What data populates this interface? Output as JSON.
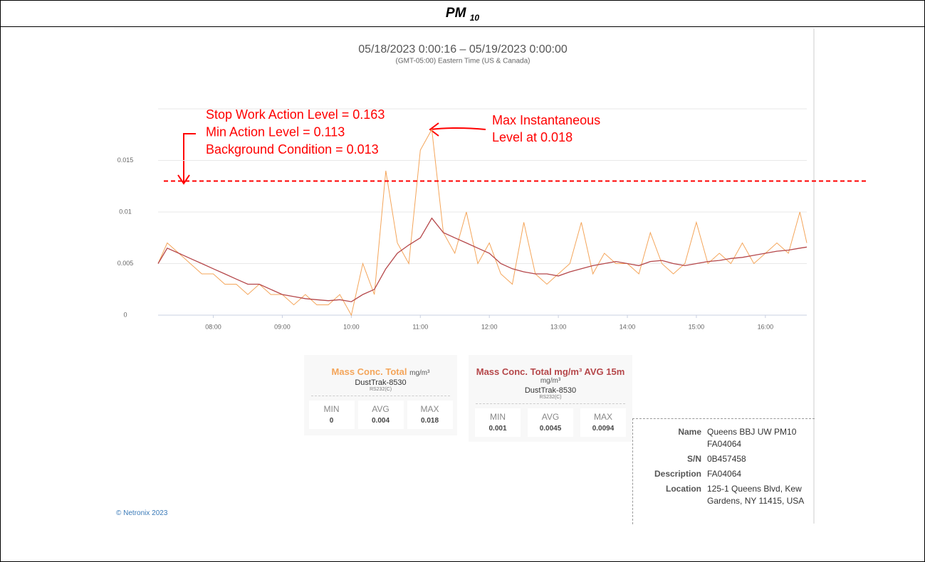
{
  "header": {
    "title": "PM",
    "subscript": "10"
  },
  "chart_data": {
    "type": "line",
    "title": "05/18/2023 0:00:16 – 05/19/2023 0:00:00",
    "subtitle": "(GMT-05:00) Eastern Time (US & Canada)",
    "x": [
      "07:12",
      "07:20",
      "07:30",
      "07:40",
      "07:50",
      "08:00",
      "08:10",
      "08:20",
      "08:30",
      "08:40",
      "08:50",
      "09:00",
      "09:10",
      "09:20",
      "09:30",
      "09:40",
      "09:50",
      "10:00",
      "10:10",
      "10:20",
      "10:30",
      "10:40",
      "10:50",
      "11:00",
      "11:10",
      "11:20",
      "11:30",
      "11:40",
      "11:50",
      "12:00",
      "12:10",
      "12:20",
      "12:30",
      "12:40",
      "12:50",
      "13:00",
      "13:10",
      "13:20",
      "13:30",
      "13:40",
      "13:50",
      "14:00",
      "14:10",
      "14:20",
      "14:30",
      "14:40",
      "14:50",
      "15:00",
      "15:10",
      "15:20",
      "15:30",
      "15:40",
      "15:50",
      "16:00",
      "16:10",
      "16:20",
      "16:30",
      "16:36"
    ],
    "series": [
      {
        "name": "Mass Conc. Total",
        "color": "#f4a55a",
        "values": [
          0.005,
          0.007,
          0.006,
          0.005,
          0.004,
          0.004,
          0.003,
          0.003,
          0.002,
          0.003,
          0.002,
          0.002,
          0.001,
          0.002,
          0.001,
          0.001,
          0.002,
          0,
          0.005,
          0.002,
          0.014,
          0.007,
          0.005,
          0.016,
          0.018,
          0.008,
          0.006,
          0.01,
          0.005,
          0.007,
          0.004,
          0.003,
          0.009,
          0.004,
          0.003,
          0.004,
          0.005,
          0.009,
          0.004,
          0.006,
          0.005,
          0.005,
          0.004,
          0.008,
          0.005,
          0.004,
          0.005,
          0.009,
          0.005,
          0.006,
          0.005,
          0.007,
          0.005,
          0.006,
          0.007,
          0.006,
          0.01,
          0.007
        ]
      },
      {
        "name": "Mass Conc. Total mg/m³ AVG 15m",
        "color": "#b5474a",
        "values": [
          0.005,
          0.0065,
          0.006,
          0.0055,
          0.005,
          0.0045,
          0.004,
          0.0035,
          0.003,
          0.003,
          0.0025,
          0.002,
          0.0018,
          0.0016,
          0.0015,
          0.0014,
          0.0015,
          0.0013,
          0.002,
          0.0025,
          0.0045,
          0.006,
          0.0068,
          0.0075,
          0.0094,
          0.008,
          0.0075,
          0.007,
          0.0065,
          0.006,
          0.005,
          0.0045,
          0.0042,
          0.004,
          0.004,
          0.0038,
          0.0042,
          0.0045,
          0.0048,
          0.005,
          0.0052,
          0.005,
          0.0048,
          0.0052,
          0.0053,
          0.005,
          0.0048,
          0.005,
          0.0052,
          0.0053,
          0.0055,
          0.0056,
          0.0058,
          0.006,
          0.0062,
          0.0063,
          0.0065,
          0.0066
        ]
      }
    ],
    "xlim": [
      "07:12",
      "16:36"
    ],
    "xticks": [
      "08:00",
      "09:00",
      "10:00",
      "11:00",
      "12:00",
      "13:00",
      "14:00",
      "15:00",
      "16:00"
    ],
    "ylim": [
      0,
      0.02
    ],
    "yticks": [
      0,
      0.005,
      0.01,
      0.015
    ],
    "grid": true,
    "threshold": {
      "value": 0.013,
      "color": "#ff0000"
    },
    "annotations": [
      "Stop Work Action Level = 0.163",
      "Min Action Level  = 0.113",
      "Background Condition = 0.013"
    ],
    "max_annotation": [
      "Max Instantaneous",
      "Level at 0.018"
    ]
  },
  "panels": [
    {
      "title": "Mass Conc. Total",
      "unit": "mg/m³",
      "device": "DustTrak-8530",
      "port": "RS232(C)",
      "labels": [
        "MIN",
        "AVG",
        "MAX"
      ],
      "values": [
        0,
        0.004,
        0.018
      ]
    },
    {
      "title": "Mass Conc. Total mg/m³ AVG 15m",
      "unit": "mg/m³",
      "device": "DustTrak-8530",
      "port": "RS232(C)",
      "labels": [
        "MIN",
        "AVG",
        "MAX"
      ],
      "values": [
        0.001,
        0.0045,
        0.0094
      ]
    }
  ],
  "info": [
    {
      "key": "Name",
      "value": "Queens BBJ UW PM10 FA04064"
    },
    {
      "key": "S/N",
      "value": "0B457458"
    },
    {
      "key": "Description",
      "value": "FA04064"
    },
    {
      "key": "Location",
      "value": "125-1 Queens Blvd, Kew Gardens, NY 11415, USA"
    }
  ],
  "footer": "© Netronix 2023"
}
